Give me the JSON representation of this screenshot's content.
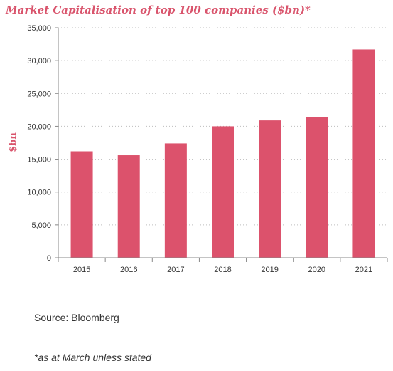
{
  "chart_data": {
    "type": "bar",
    "title": "Market Capitalisation of top 100 companies ($bn)*",
    "ylabel": "$bn",
    "xlabel": "",
    "categories": [
      "2015",
      "2016",
      "2017",
      "2018",
      "2019",
      "2020",
      "2021"
    ],
    "values": [
      16200,
      15600,
      17400,
      20000,
      20900,
      21400,
      31700
    ],
    "ylim": [
      0,
      35000
    ],
    "yticks": [
      0,
      5000,
      10000,
      15000,
      20000,
      25000,
      30000,
      35000
    ],
    "ytick_labels": [
      "0",
      "5,000",
      "10,000",
      "15,000",
      "20,000",
      "25,000",
      "30,000",
      "35,000"
    ],
    "grid": "horizontal-dotted",
    "legend": "none",
    "bar_color": "#dc526c",
    "title_color": "#d9546c"
  },
  "notes": {
    "source": "Source: Bloomberg",
    "footnote": "*as at March unless stated"
  }
}
